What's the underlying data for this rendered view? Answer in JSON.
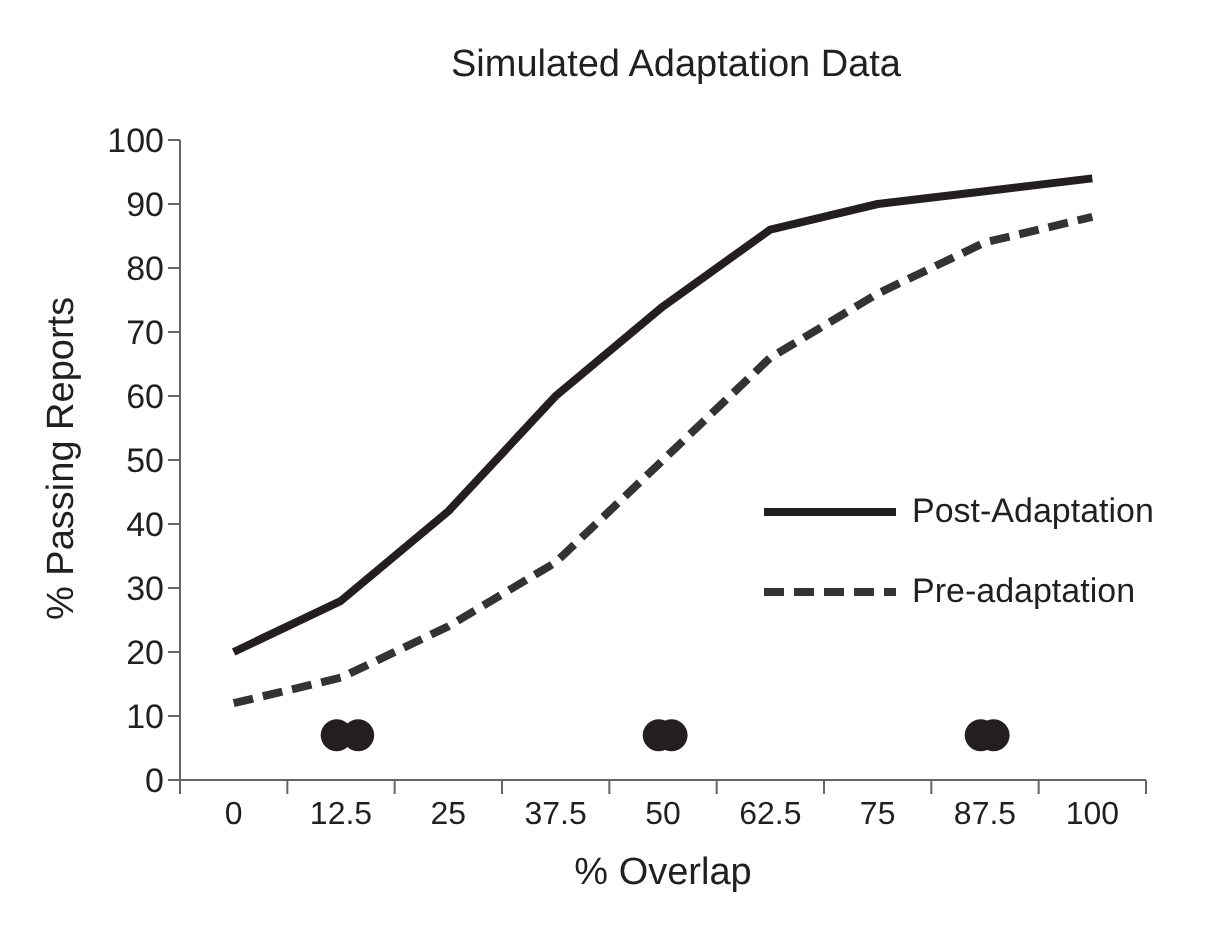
{
  "chart_data": {
    "type": "line",
    "title": "Simulated Adaptation Data",
    "xlabel": "% Overlap",
    "ylabel": "% Passing Reports",
    "x": [
      0,
      12.5,
      25,
      37.5,
      50,
      62.5,
      75,
      87.5,
      100
    ],
    "xlim": [
      -6.25,
      106.25
    ],
    "xticks": [
      {
        "value": -6.25,
        "label": null
      },
      0,
      {
        "value": 6.25,
        "label": null
      },
      12.5,
      {
        "value": 18.75,
        "label": null
      },
      25,
      {
        "value": 31.25,
        "label": null
      },
      37.5,
      {
        "value": 43.75,
        "label": null
      },
      50,
      {
        "value": 56.25,
        "label": null
      },
      62.5,
      {
        "value": 68.75,
        "label": null
      },
      75,
      {
        "value": 81.25,
        "label": null
      },
      87.5,
      {
        "value": 93.75,
        "label": null
      },
      100,
      {
        "value": 106.25,
        "label": null
      }
    ],
    "ylim": [
      0,
      100
    ],
    "yticks": [
      0,
      10,
      20,
      30,
      40,
      50,
      60,
      70,
      80,
      90,
      100
    ],
    "series": [
      {
        "name": "Post-Adaptation",
        "color": "#231f20",
        "line_style": "solid",
        "values": [
          20,
          28,
          42,
          60,
          74,
          86,
          90,
          92,
          94
        ]
      },
      {
        "name": "Pre-adaptation",
        "color": "#333333",
        "line_style": "dashed",
        "values": [
          12,
          16,
          24,
          34,
          50,
          66,
          76,
          84,
          88
        ]
      },
      {
        "type": "scatter",
        "color": "#231f20",
        "marker": "circle",
        "x": [
          12,
          14.5,
          49.5,
          51,
          87,
          88.5
        ],
        "values": [
          7,
          7,
          7,
          7,
          7,
          7
        ]
      }
    ],
    "marker": "none",
    "grid": false,
    "legend": "right"
  }
}
